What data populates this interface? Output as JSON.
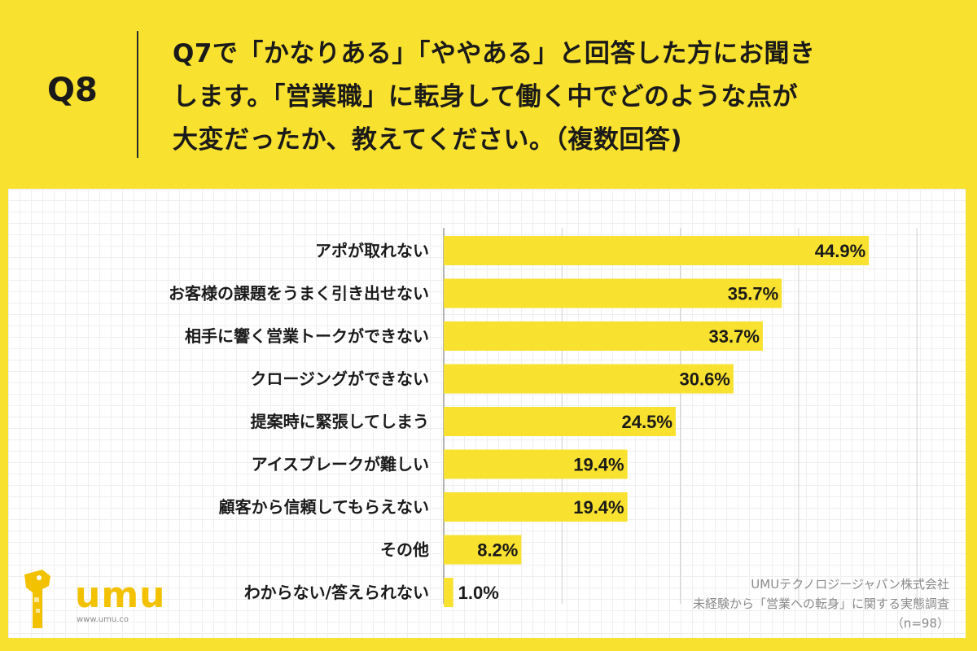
{
  "question": {
    "label": "Q8",
    "line1": "Q7で「かなりある」「ややある」と回答した方にお聞き",
    "line2": "します。「営業職」に転身して働く中でどのような点が",
    "line3": "大変だったか、教えてください。（複数回答)"
  },
  "chart_data": {
    "type": "bar",
    "orientation": "horizontal",
    "categories": [
      "アポが取れない",
      "お客様の課題をうまく引き出せない",
      "相手に響く営業トークができない",
      "クロージングができない",
      "提案時に緊張してしまう",
      "アイスブレークが難しい",
      "顧客から信頼してもらえない",
      "その他",
      "わからない/答えられない"
    ],
    "values": [
      44.9,
      35.7,
      33.7,
      30.6,
      24.5,
      19.4,
      19.4,
      8.2,
      1.0
    ],
    "value_labels": [
      "44.9%",
      "35.7%",
      "33.7%",
      "30.6%",
      "24.5%",
      "19.4%",
      "19.4%",
      "8.2%",
      "1.0%"
    ],
    "xlim": [
      0,
      50
    ],
    "gridlines": true,
    "bar_color": "#F8E12F"
  },
  "logo": {
    "text": "umu",
    "url": "www.umu.co"
  },
  "source": {
    "line1": "UMUテクノロジージャパン株式会社",
    "line2": "未経験から「営業への転身」に関する実態調査",
    "line3": "（n=98）"
  },
  "colors": {
    "background": "#F8E12F",
    "bar": "#F8E12F",
    "text": "#1a1a1a",
    "muted": "#8a8a8a"
  }
}
